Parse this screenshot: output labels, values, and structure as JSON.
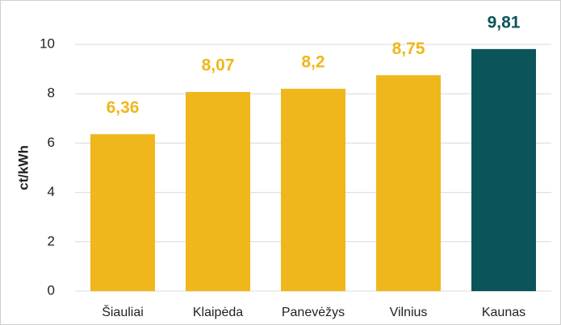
{
  "chart_data": {
    "type": "bar",
    "y_axis_label": "ct/kWh",
    "categories": [
      "Šiauliai",
      "Klaipėda",
      "Panevėžys",
      "Vilnius",
      "Kaunas"
    ],
    "values": [
      6.36,
      8.07,
      8.2,
      8.75,
      9.81
    ],
    "value_labels": [
      "6,36",
      "8,07",
      "8,2",
      "8,75",
      "9,81"
    ],
    "colors": [
      "#f0b71c",
      "#f0b71c",
      "#f0b71c",
      "#f0b71c",
      "#0b5459"
    ],
    "ylim": [
      0,
      10
    ],
    "yticks": [
      0,
      2,
      4,
      6,
      8,
      10
    ],
    "grid": true
  }
}
